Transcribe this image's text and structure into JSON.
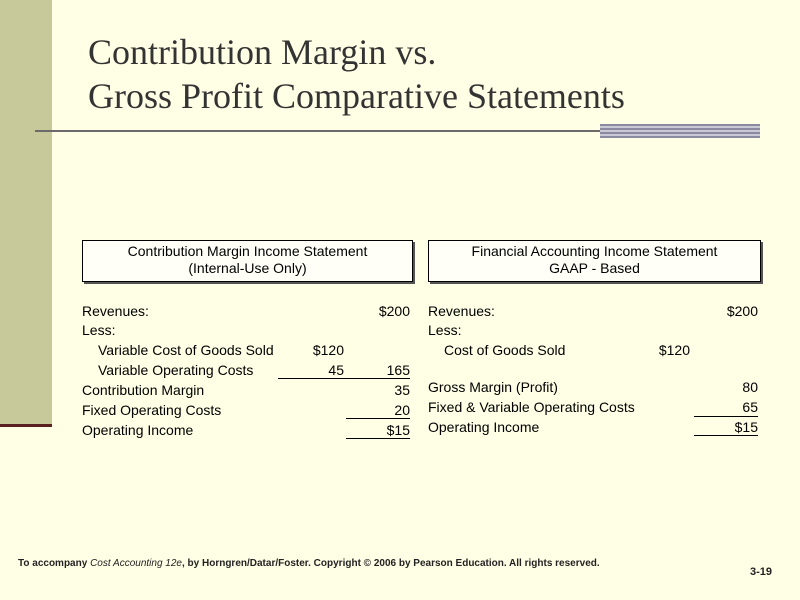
{
  "title": {
    "line1": "Contribution Margin vs.",
    "line2": "Gross Profit Comparative Statements"
  },
  "left_statement": {
    "header_line1": "Contribution Margin Income Statement",
    "header_line2": "(Internal-Use Only)",
    "rows": [
      {
        "label": "Revenues:",
        "col1": "",
        "col2": "$200"
      },
      {
        "label": "Less:",
        "col1": "",
        "col2": ""
      },
      {
        "label": "Variable Cost of Goods Sold",
        "col1": "$120",
        "col2": ""
      },
      {
        "label": "Variable Operating Costs",
        "col1": "45",
        "col2": "165"
      },
      {
        "label": "Contribution Margin",
        "col1": "",
        "col2": "35"
      },
      {
        "label": "Fixed Operating Costs",
        "col1": "",
        "col2": "20"
      },
      {
        "label": "Operating Income",
        "col1": "",
        "col2": "$15"
      }
    ]
  },
  "right_statement": {
    "header_line1": "Financial Accounting Income Statement",
    "header_line2": "GAAP - Based",
    "rows": [
      {
        "label": "Revenues:",
        "col1": "",
        "col2": "$200"
      },
      {
        "label": "Less:",
        "col1": "",
        "col2": ""
      },
      {
        "label": "Cost of Goods Sold",
        "col1": "$120",
        "col2": ""
      },
      {
        "label": "Gross Margin (Profit)",
        "col1": "",
        "col2": "80"
      },
      {
        "label": "Fixed & Variable Operating Costs",
        "col1": "",
        "col2": "65"
      },
      {
        "label": "Operating Income",
        "col1": "",
        "col2": "$15"
      }
    ]
  },
  "footer": {
    "prefix": "To accompany ",
    "book": "Cost Accounting 12e",
    "suffix": ", by Horngren/Datar/Foster. Copyright © 2006 by Pearson Education. All rights reserved.",
    "page_number": "3-19"
  }
}
